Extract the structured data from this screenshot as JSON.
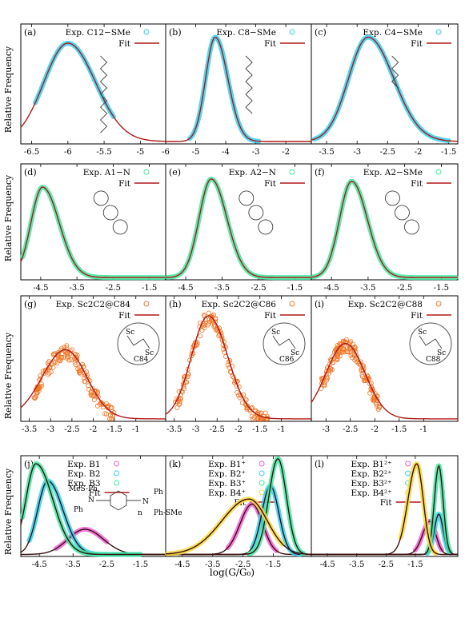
{
  "figure": {
    "ylabel": "Relative Frequency",
    "xlabel": "log(G/G₀)",
    "colors": {
      "fit": "#b01818",
      "cyan": "#30d0f0",
      "green": "#40e8a0",
      "orange": "#f07828",
      "magenta": "#f060d0",
      "yellow": "#f8d840",
      "mol": "#404040"
    }
  },
  "chart_data": [
    {
      "id": "a",
      "type": "scatter",
      "title": "(a)",
      "legend": {
        "exp": "Exp. C12−SMe",
        "fit": "Fit"
      },
      "xlim": [
        -6.65,
        -4.65
      ],
      "ticks": [
        -6.5,
        -6,
        -5.5,
        -5
      ],
      "tick_labels": [
        "-6.5",
        "-6",
        "-5.5",
        "-5"
      ],
      "series": [
        {
          "color": "cyan",
          "peak": -6.0,
          "wl": 0.33,
          "wr": 0.38,
          "amp": 0.82,
          "range": [
            -6.45,
            -5.37
          ],
          "scatter": false
        }
      ]
    },
    {
      "id": "b",
      "type": "scatter",
      "title": "(b)",
      "legend": {
        "exp": "Exp. C8−SMe",
        "fit": "Fit"
      },
      "xlim": [
        -6.0,
        -1.15
      ],
      "ticks": [
        -6,
        -5,
        -4,
        -3,
        -2
      ],
      "tick_labels": [
        "-6",
        "-5",
        "-4",
        "-3",
        "-2"
      ],
      "series": [
        {
          "color": "cyan",
          "peak": -4.35,
          "wl": 0.32,
          "wr": 0.42,
          "amp": 0.87,
          "range": [
            -5.2,
            -2.9
          ],
          "scatter": false
        }
      ]
    },
    {
      "id": "c",
      "type": "scatter",
      "title": "(c)",
      "legend": {
        "exp": "Exp. C4−SMe",
        "fit": "Fit"
      },
      "xlim": [
        -3.75,
        -1.35
      ],
      "ticks": [
        -3.5,
        -3,
        -2.5,
        -2,
        -1.5
      ],
      "tick_labels": [
        "-3.5",
        "-3",
        "-2.5",
        "-2",
        "-1.5"
      ],
      "series": [
        {
          "color": "cyan",
          "peak": -2.82,
          "wl": 0.32,
          "wr": 0.42,
          "amp": 0.87,
          "range": [
            -3.7,
            -1.5
          ],
          "scatter": false
        }
      ]
    },
    {
      "id": "d",
      "type": "scatter",
      "title": "(d)",
      "legend": {
        "exp": "Exp. A1−N",
        "fit": "Fit"
      },
      "xlim": [
        -5.05,
        -1.05
      ],
      "ticks": [
        -4.5,
        -3.5,
        -2.5,
        -1.5
      ],
      "tick_labels": [
        "-4.5",
        "-3.5",
        "-2.5",
        "-1.5"
      ],
      "series": [
        {
          "color": "green",
          "peak": -4.45,
          "wl": 0.32,
          "wr": 0.46,
          "amp": 0.78,
          "range": [
            -5.0,
            -1.1
          ],
          "scatter": false
        }
      ]
    },
    {
      "id": "e",
      "type": "scatter",
      "title": "(e)",
      "legend": {
        "exp": "Exp. A2−N",
        "fit": "Fit"
      },
      "xlim": [
        -5.05,
        -1.05
      ],
      "ticks": [
        -4.5,
        -3.5,
        -2.5,
        -1.5
      ],
      "tick_labels": [
        "-4.5",
        "-3.5",
        "-2.5",
        "-1.5"
      ],
      "series": [
        {
          "color": "green",
          "peak": -3.8,
          "wl": 0.33,
          "wr": 0.43,
          "amp": 0.85,
          "range": [
            -5.0,
            -1.1
          ],
          "scatter": false
        }
      ]
    },
    {
      "id": "f",
      "type": "scatter",
      "title": "(f)",
      "legend": {
        "exp": "Exp. A2−SMe",
        "fit": "Fit"
      },
      "xlim": [
        -5.05,
        -1.05
      ],
      "ticks": [
        -4.5,
        -3.5,
        -2.5,
        -1.5
      ],
      "tick_labels": [
        "-4.5",
        "-3.5",
        "-2.5",
        "-1.5"
      ],
      "series": [
        {
          "color": "green",
          "peak": -3.95,
          "wl": 0.33,
          "wr": 0.43,
          "amp": 0.83,
          "range": [
            -5.0,
            -1.1
          ],
          "scatter": false
        }
      ]
    },
    {
      "id": "g",
      "type": "scatter",
      "title": "(g)",
      "legend": {
        "exp": "Exp. Sc2C2@C84",
        "fit": "Fit"
      },
      "label": "C84",
      "xlim": [
        -3.7,
        -0.3
      ],
      "ticks": [
        -3.5,
        -3,
        -2.5,
        -2,
        -1.5,
        -1
      ],
      "tick_labels": [
        "-3.5",
        "-3",
        "-2.5",
        "-2",
        "-1.5",
        "-1"
      ],
      "series": [
        {
          "color": "orange",
          "peak": -2.65,
          "wl": 0.55,
          "wr": 0.5,
          "amp": 0.55,
          "range": [
            -3.4,
            -1.5
          ],
          "scatter": true
        }
      ]
    },
    {
      "id": "h",
      "type": "scatter",
      "title": "(h)",
      "legend": {
        "exp": "Exp. Sc2C2@C86",
        "fit": "Fit"
      },
      "label": "C86",
      "xlim": [
        -3.7,
        -0.3
      ],
      "ticks": [
        -3.5,
        -3,
        -2.5,
        -2,
        -1.5,
        -1
      ],
      "tick_labels": [
        "-3.5",
        "-3",
        "-2.5",
        "-2",
        "-1.5",
        "-1"
      ],
      "series": [
        {
          "color": "orange",
          "peak": -2.7,
          "wl": 0.4,
          "wr": 0.45,
          "amp": 0.82,
          "range": [
            -3.5,
            -1.3
          ],
          "scatter": true
        }
      ]
    },
    {
      "id": "i",
      "type": "scatter",
      "title": "(i)",
      "legend": {
        "exp": "Exp. Sc2C2@C88",
        "fit": "Fit"
      },
      "label": "C88",
      "xlim": [
        -3.3,
        -0.3
      ],
      "ticks": [
        -3,
        -2.5,
        -2,
        -1.5,
        -1
      ],
      "tick_labels": [
        "-3",
        "-2.5",
        "-2",
        "-1.5",
        "-1"
      ],
      "series": [
        {
          "color": "orange",
          "peak": -2.6,
          "wl": 0.4,
          "wr": 0.4,
          "amp": 0.6,
          "range": [
            -3.1,
            -1.9
          ],
          "scatter": true
        }
      ]
    },
    {
      "id": "j",
      "type": "line",
      "title": "(j)",
      "legend": {
        "exp": [
          "Exp. B1",
          "Exp. B2",
          "Exp. B3"
        ],
        "fit": "Fit"
      },
      "mol": [
        "MeS-Ph",
        "Ph",
        "Ph",
        "Ph-SMe",
        "N",
        "N",
        "n"
      ],
      "xlim": [
        -5.05,
        -0.75
      ],
      "ticks": [
        -4.5,
        -3.5,
        -2.5,
        -1.5
      ],
      "tick_labels": [
        "-4.5",
        "-3.5",
        "-2.5",
        "-1.5"
      ],
      "series": [
        {
          "color": "magenta",
          "peak": -3.15,
          "wl": 0.5,
          "wr": 0.55,
          "amp": 0.25,
          "range": [
            -4.0,
            -2.5
          ],
          "scatter": false
        },
        {
          "color": "cyan",
          "peak": -4.25,
          "wl": 0.3,
          "wr": 0.45,
          "amp": 0.73,
          "range": [
            -4.8,
            -1.5
          ],
          "scatter": false
        },
        {
          "color": "green",
          "peak": -4.6,
          "wl": 0.3,
          "wr": 0.5,
          "amp": 0.9,
          "range": [
            -5.0,
            -1.5
          ],
          "scatter": false
        }
      ]
    },
    {
      "id": "k",
      "type": "line",
      "title": "(k)",
      "legend": {
        "exp": [
          "Exp. B1⁺",
          "Exp. B2⁺",
          "Exp. B3⁺",
          "Exp. B4⁺"
        ],
        "fit": "Fit"
      },
      "xlim": [
        -5.05,
        -0.25
      ],
      "ticks": [
        -4.5,
        -3.5,
        -2.5,
        -1.5
      ],
      "tick_labels": [
        "-4.5",
        "-3.5",
        "-2.5",
        "-1.5"
      ],
      "series": [
        {
          "color": "magenta",
          "peak": -2.2,
          "wl": 0.4,
          "wr": 0.35,
          "amp": 0.5,
          "range": [
            -3.0,
            -1.4
          ],
          "scatter": false
        },
        {
          "color": "cyan",
          "peak": -1.6,
          "wl": 0.28,
          "wr": 0.28,
          "amp": 0.68,
          "range": [
            -2.2,
            -0.6
          ],
          "scatter": false
        },
        {
          "color": "green",
          "peak": -1.35,
          "wl": 0.3,
          "wr": 0.28,
          "amp": 0.95,
          "range": [
            -2.3,
            -0.5
          ],
          "scatter": false
        },
        {
          "color": "yellow",
          "peak": -2.3,
          "wl": 0.9,
          "wr": 0.6,
          "amp": 0.55,
          "range": [
            -5.0,
            -1.2
          ],
          "scatter": false
        }
      ]
    },
    {
      "id": "l",
      "type": "line",
      "title": "(l)",
      "legend": {
        "exp": [
          "Exp. B1²⁺",
          "Exp. B2²⁺",
          "Exp. B3²⁺",
          "Exp. B4²⁺"
        ],
        "fit": "Fit"
      },
      "xlim": [
        -5.05,
        -0.05
      ],
      "ticks": [
        -4.5,
        -3.5,
        -2.5,
        -1.5
      ],
      "tick_labels": [
        "-4.5",
        "-3.5",
        "-2.5",
        "-1.5"
      ],
      "series": [
        {
          "color": "magenta",
          "peak": -1.0,
          "wl": 0.25,
          "wr": 0.2,
          "amp": 0.33,
          "range": [
            -1.5,
            -0.6
          ],
          "scatter": false
        },
        {
          "color": "cyan",
          "peak": -0.7,
          "wl": 0.15,
          "wr": 0.15,
          "amp": 0.4,
          "range": [
            -1.1,
            -0.3
          ],
          "scatter": false
        },
        {
          "color": "green",
          "peak": -0.7,
          "wl": 0.15,
          "wr": 0.15,
          "amp": 0.88,
          "range": [
            -1.1,
            -0.3
          ],
          "scatter": false
        },
        {
          "color": "yellow",
          "peak": -1.45,
          "wl": 0.3,
          "wr": 0.22,
          "amp": 0.9,
          "range": [
            -2.0,
            -0.8
          ],
          "scatter": false
        }
      ]
    }
  ]
}
